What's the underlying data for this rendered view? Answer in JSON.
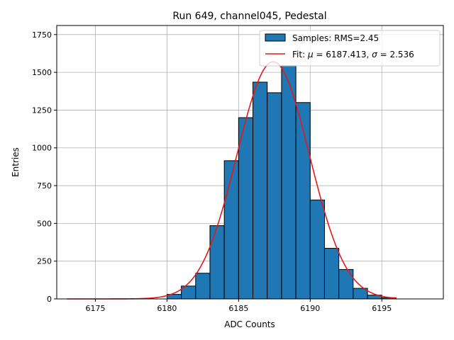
{
  "chart_data": {
    "type": "bar",
    "title": "Run 649, channel045, Pedestal",
    "xlabel": "ADC Counts",
    "ylabel": "Entries",
    "xlim": [
      6172.3,
      6199.3
    ],
    "ylim": [
      0,
      1810
    ],
    "grid": true,
    "legend_position": "top-right",
    "x_ticks": [
      6175,
      6180,
      6185,
      6190,
      6195
    ],
    "y_ticks": [
      0,
      250,
      500,
      750,
      1000,
      1250,
      1500,
      1750
    ],
    "histogram": {
      "name": "Samples: RMS=2.45",
      "color": "#1f77b4",
      "bin_width": 1,
      "bin_lefts": [
        6180,
        6181,
        6182,
        6183,
        6184,
        6185,
        6186,
        6187,
        6188,
        6189,
        6190,
        6191,
        6192,
        6193,
        6194,
        6195
      ],
      "values": [
        30,
        85,
        170,
        485,
        915,
        1200,
        1435,
        1365,
        1545,
        1300,
        655,
        335,
        195,
        70,
        25,
        8
      ]
    },
    "fit": {
      "name": "Fit: μ = 6187.413, σ = 2.536",
      "name_prefix": "Fit: ",
      "mu_symbol": "μ",
      "mu_value": " = 6187.413, ",
      "sigma_symbol": "σ",
      "sigma_value": " = 2.536",
      "color": "#e31a1c",
      "mu": 6187.413,
      "sigma": 2.536,
      "amplitude": 1570,
      "x_range": [
        6173,
        6196
      ]
    }
  }
}
